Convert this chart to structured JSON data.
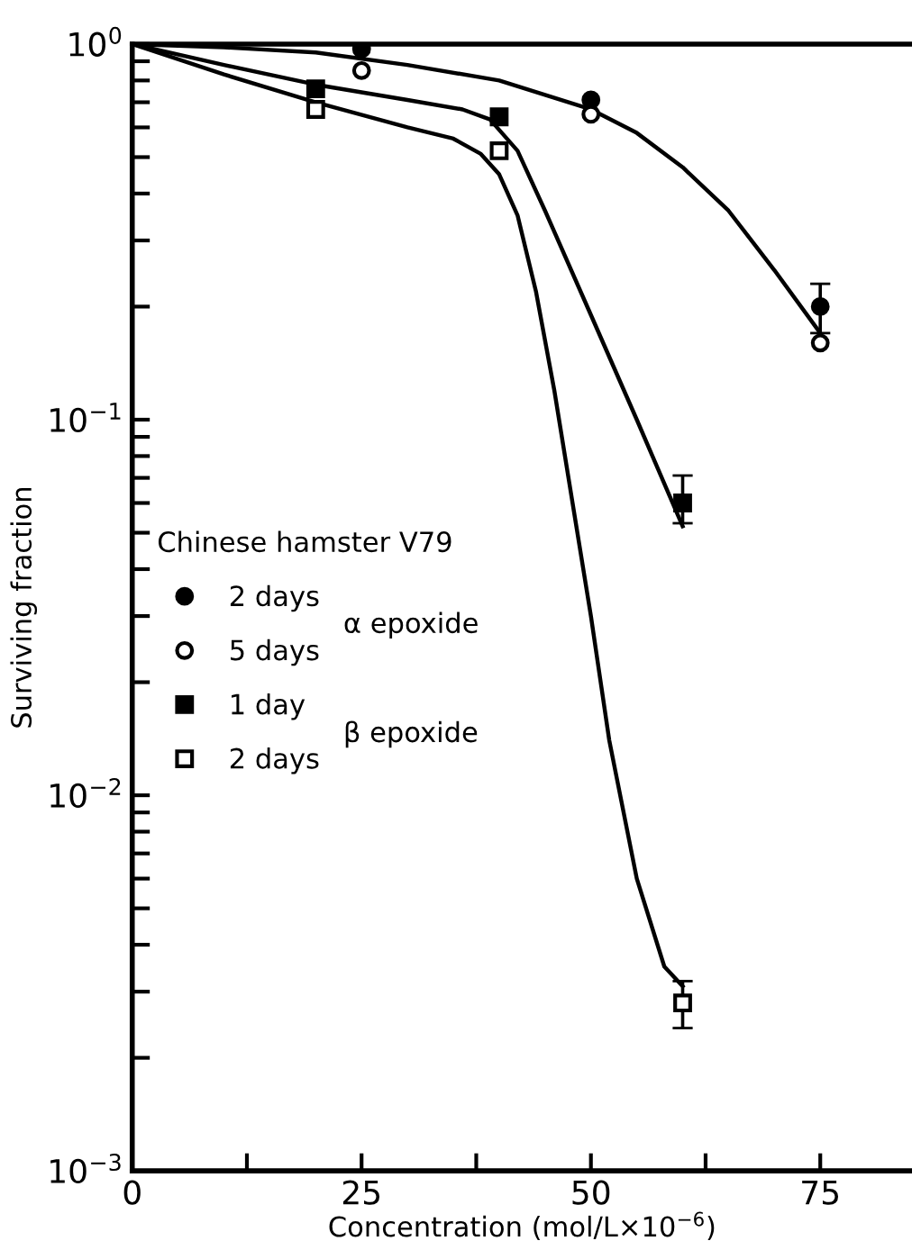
{
  "chart_data": {
    "type": "scatter",
    "xlabel": "Concentration (mol/L×10$^{−6}$)",
    "ylabel": "Surviving fraction",
    "legend_title": "Chinese hamster V79",
    "log": "y",
    "legend": "left",
    "grid": false,
    "xlim": [
      0,
      85
    ],
    "xticks": [
      0,
      {
        "value": 12.5,
        "label": null
      },
      25,
      {
        "value": 37.5,
        "label": null
      },
      50,
      {
        "value": 62.5,
        "label": null
      },
      75
    ],
    "ylim": [
      0.001,
      1
    ],
    "yticks": [
      {
        "value": 0.001,
        "label": "10$^{−3}$"
      },
      {
        "value": 0.002,
        "label": null
      },
      {
        "value": 0.003,
        "label": null
      },
      {
        "value": 0.004,
        "label": null
      },
      {
        "value": 0.005,
        "label": null
      },
      {
        "value": 0.006,
        "label": null
      },
      {
        "value": 0.007,
        "label": null
      },
      {
        "value": 0.008,
        "label": null
      },
      {
        "value": 0.009,
        "label": null
      },
      {
        "value": 0.01,
        "label": "10$^{−2}$"
      },
      {
        "value": 0.02,
        "label": null
      },
      {
        "value": 0.03,
        "label": null
      },
      {
        "value": 0.04,
        "label": null
      },
      {
        "value": 0.05,
        "label": null
      },
      {
        "value": 0.06,
        "label": null
      },
      {
        "value": 0.07,
        "label": null
      },
      {
        "value": 0.08,
        "label": null
      },
      {
        "value": 0.09,
        "label": null
      },
      {
        "value": 0.1,
        "label": "10$^{−1}$"
      },
      {
        "value": 0.2,
        "label": null
      },
      {
        "value": 0.3,
        "label": null
      },
      {
        "value": 0.4,
        "label": null
      },
      {
        "value": 0.5,
        "label": null
      },
      {
        "value": 0.6,
        "label": null
      },
      {
        "value": 0.7,
        "label": null
      },
      {
        "value": 0.8,
        "label": null
      },
      {
        "value": 0.9,
        "label": null
      },
      {
        "value": 1,
        "label": "10$^{0}$"
      }
    ],
    "annotations": [
      "α epoxide",
      "β epoxide"
    ],
    "series": [
      {
        "name": "2 days",
        "color": "#000000",
        "marker": "circle",
        "x": [
          25,
          50,
          75
        ],
        "values": [
          0.97,
          0.71,
          0.2
        ],
        "errors": [
          null,
          null,
          [
            0.17,
            0.23
          ]
        ]
      },
      {
        "name": "5 days",
        "color": "#ffffff",
        "marker": "circle",
        "x": [
          25,
          50,
          75
        ],
        "values": [
          0.85,
          0.65,
          0.16
        ]
      },
      {
        "name": "1 day",
        "color": "#000000",
        "marker": "square",
        "x": [
          20,
          40,
          60
        ],
        "values": [
          0.76,
          0.64,
          0.06
        ],
        "errors": [
          null,
          null,
          [
            0.053,
            0.071
          ]
        ]
      },
      {
        "name": "2 days",
        "color": "#ffffff",
        "marker": "square",
        "x": [
          20,
          40,
          60
        ],
        "values": [
          0.67,
          0.52,
          0.0028
        ],
        "errors": [
          null,
          null,
          [
            0.0024,
            0.0032
          ]
        ]
      },
      {
        "type": "line",
        "color": "#000000",
        "marker": "none",
        "x": [
          0,
          10,
          20,
          30,
          40,
          50,
          55,
          60,
          65,
          70,
          75
        ],
        "values": [
          1,
          0.98,
          0.95,
          0.88,
          0.8,
          0.67,
          0.58,
          0.47,
          0.36,
          0.25,
          0.17
        ]
      },
      {
        "type": "line",
        "color": "#000000",
        "marker": "none",
        "x": [
          0,
          10,
          20,
          30,
          36,
          39,
          42,
          45,
          50,
          55,
          60
        ],
        "values": [
          1,
          0.88,
          0.78,
          0.71,
          0.67,
          0.63,
          0.52,
          0.36,
          0.19,
          0.1,
          0.052
        ]
      },
      {
        "type": "line",
        "color": "#000000",
        "marker": "none",
        "x": [
          0,
          10,
          20,
          30,
          35,
          38,
          40,
          42,
          44,
          46,
          48,
          50,
          52,
          55,
          58,
          60
        ],
        "values": [
          1,
          0.83,
          0.7,
          0.6,
          0.56,
          0.51,
          0.45,
          0.35,
          0.22,
          0.12,
          0.06,
          0.03,
          0.014,
          0.006,
          0.0035,
          0.0031
        ]
      }
    ]
  }
}
